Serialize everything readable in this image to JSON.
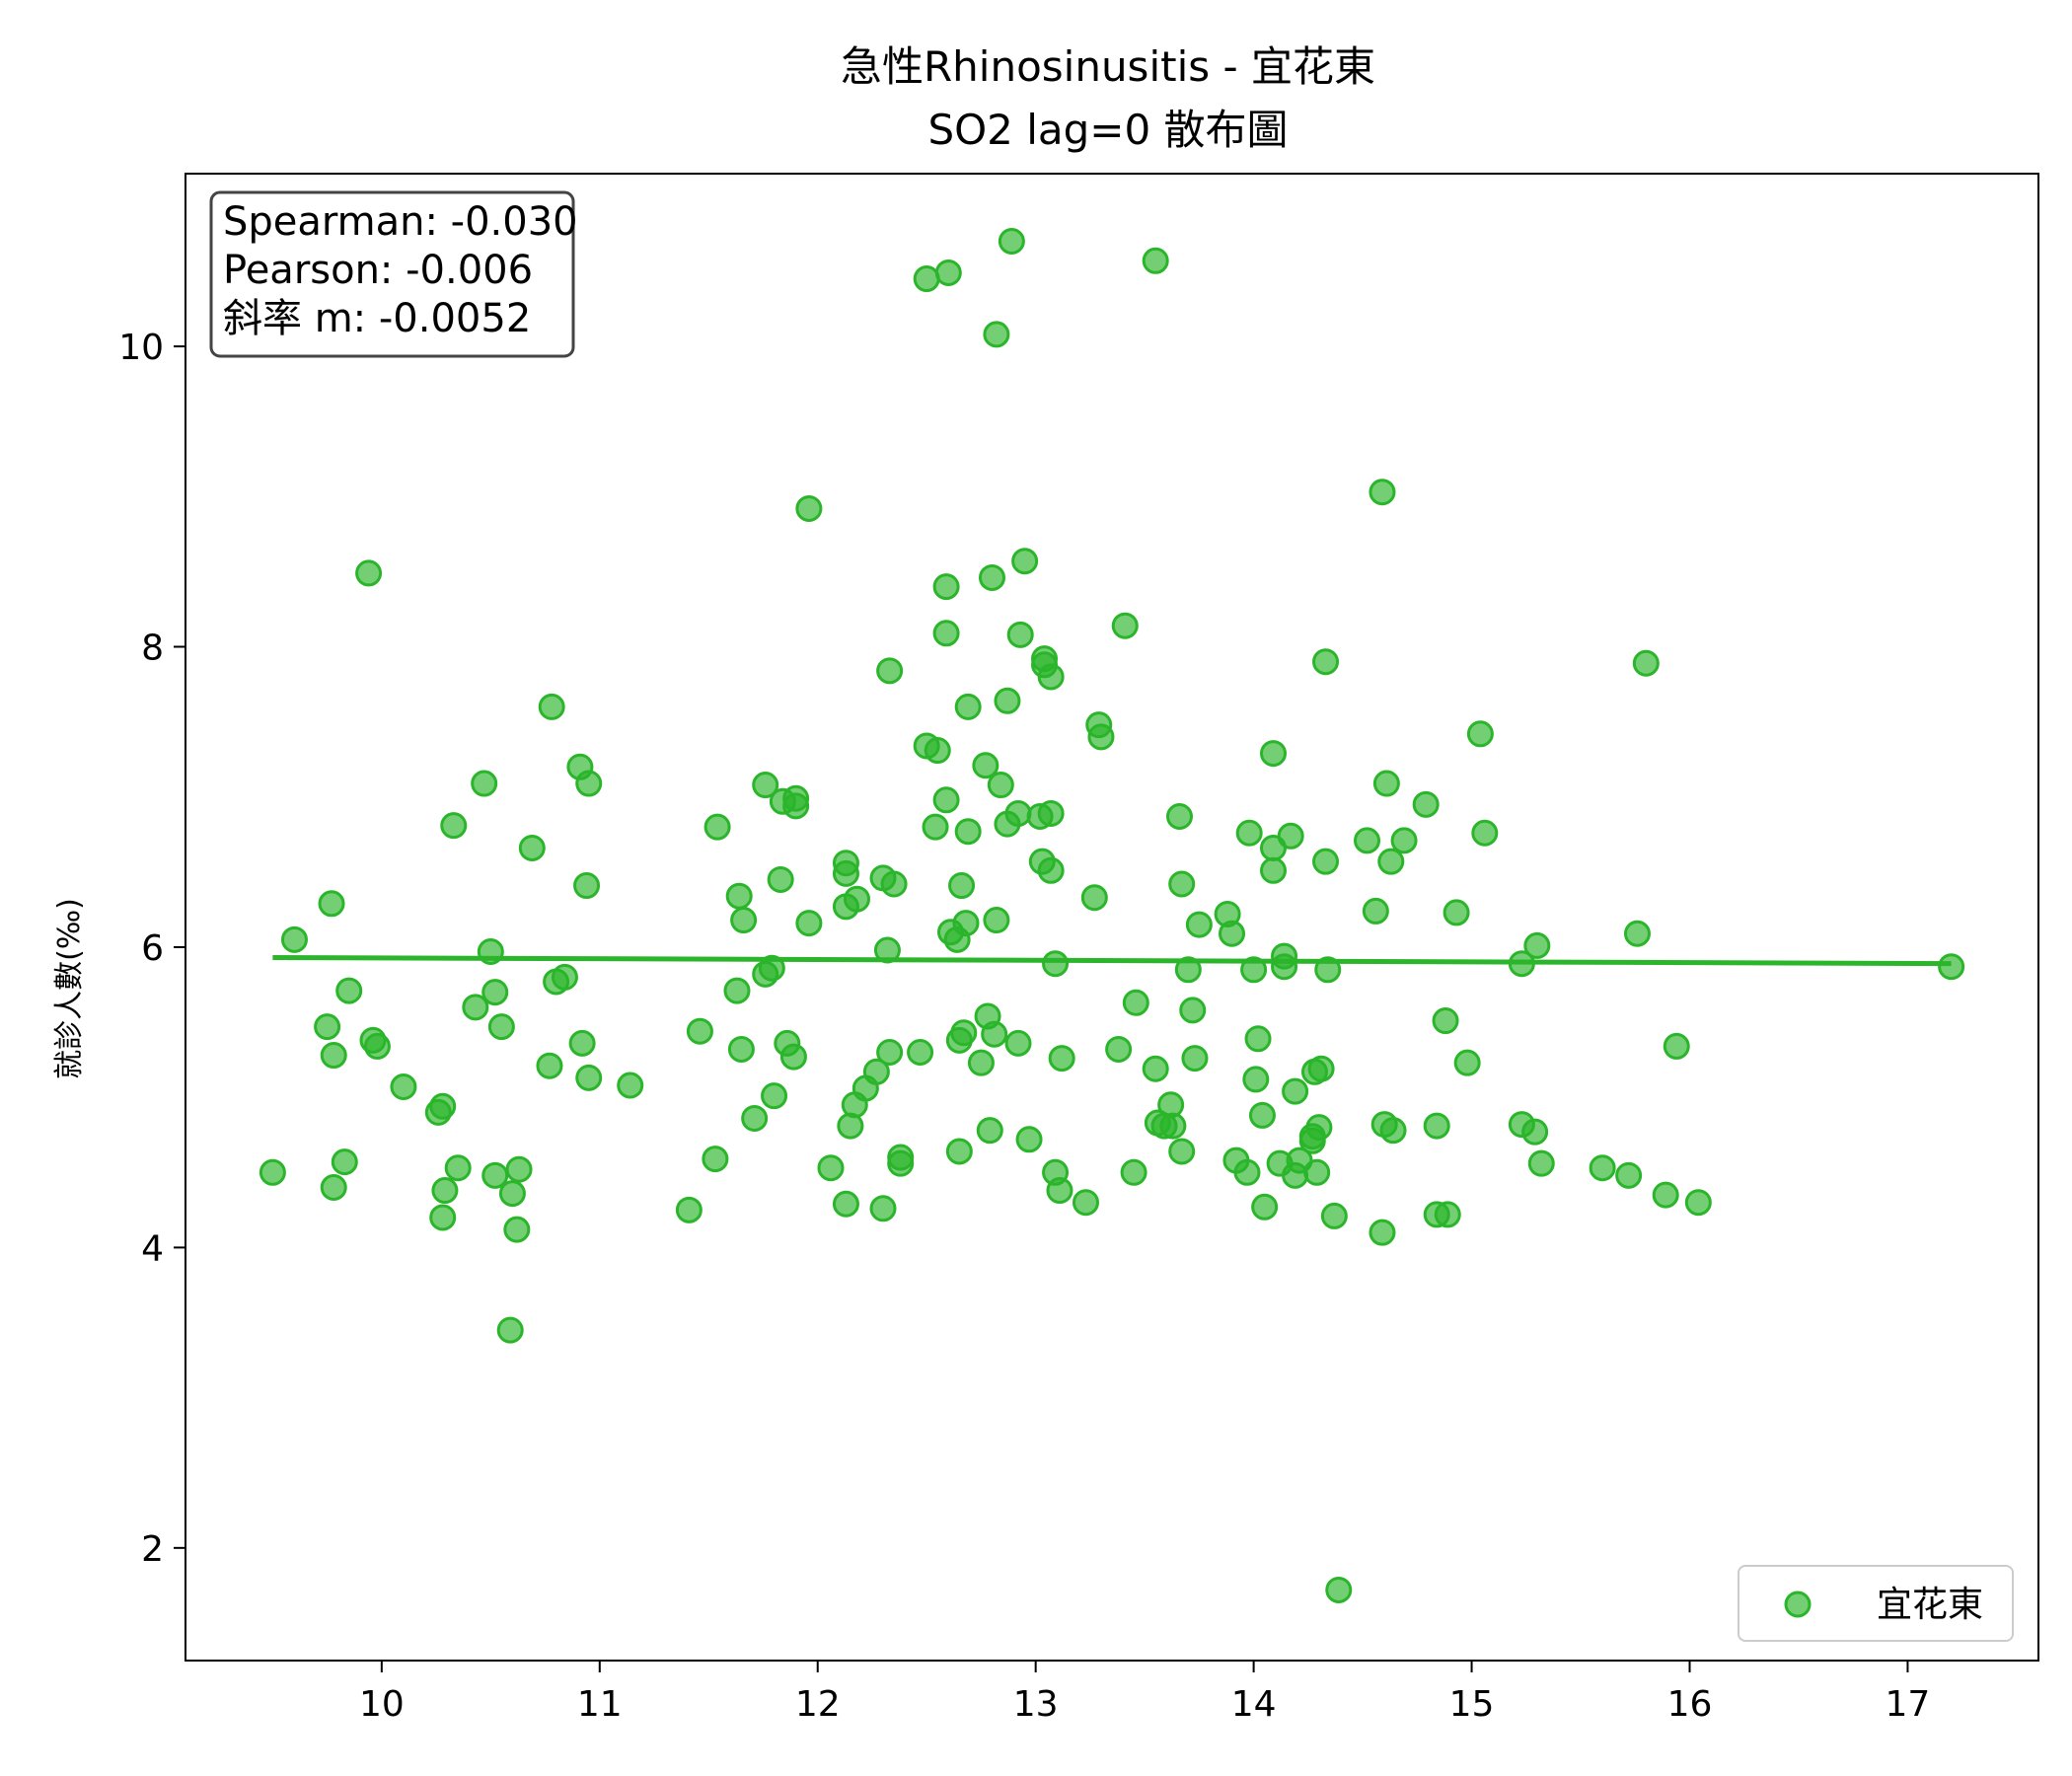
{
  "chart_data": {
    "type": "scatter",
    "title": "急性Rhinosinusitis - 宜花東",
    "subtitle": "SO2 lag=0 散布圖",
    "xlabel": "",
    "ylabel": "就診人數(‰)",
    "xlim": [
      9.1,
      17.6
    ],
    "ylim": [
      1.25,
      11.15
    ],
    "xticks": [
      10,
      11,
      12,
      13,
      14,
      15,
      16,
      17
    ],
    "yticks": [
      2,
      4,
      6,
      8,
      10
    ],
    "grid": false,
    "legend_position": "lower-right",
    "stats": [
      "Spearman: -0.030",
      "Pearson: -0.006",
      "斜率 m: -0.0052"
    ],
    "series": [
      {
        "name": "宜花東",
        "color": "#2ab52a",
        "points": [
          [
            9.5,
            4.5
          ],
          [
            9.6,
            6.05
          ],
          [
            9.75,
            5.47
          ],
          [
            9.77,
            6.29
          ],
          [
            9.78,
            4.4
          ],
          [
            9.78,
            5.28
          ],
          [
            9.83,
            4.57
          ],
          [
            9.85,
            5.71
          ],
          [
            9.94,
            8.49
          ],
          [
            9.96,
            5.38
          ],
          [
            9.98,
            5.34
          ],
          [
            10.1,
            5.07
          ],
          [
            10.26,
            4.9
          ],
          [
            10.28,
            4.94
          ],
          [
            10.28,
            4.2
          ],
          [
            10.29,
            4.38
          ],
          [
            10.33,
            6.81
          ],
          [
            10.35,
            4.53
          ],
          [
            10.43,
            5.6
          ],
          [
            10.47,
            7.09
          ],
          [
            10.5,
            5.97
          ],
          [
            10.52,
            5.7
          ],
          [
            10.52,
            4.48
          ],
          [
            10.55,
            5.47
          ],
          [
            10.59,
            3.45
          ],
          [
            10.6,
            4.36
          ],
          [
            10.62,
            4.12
          ],
          [
            10.63,
            4.52
          ],
          [
            10.69,
            6.66
          ],
          [
            10.77,
            5.21
          ],
          [
            10.78,
            7.6
          ],
          [
            10.8,
            5.77
          ],
          [
            10.84,
            5.8
          ],
          [
            10.91,
            7.2
          ],
          [
            10.92,
            5.36
          ],
          [
            10.94,
            6.41
          ],
          [
            10.95,
            5.13
          ],
          [
            10.95,
            7.09
          ],
          [
            11.14,
            5.08
          ],
          [
            11.41,
            4.25
          ],
          [
            11.46,
            5.44
          ],
          [
            11.53,
            4.59
          ],
          [
            11.54,
            6.8
          ],
          [
            11.63,
            5.71
          ],
          [
            11.64,
            6.34
          ],
          [
            11.65,
            5.32
          ],
          [
            11.66,
            6.18
          ],
          [
            11.71,
            4.86
          ],
          [
            11.76,
            5.82
          ],
          [
            11.76,
            7.08
          ],
          [
            11.79,
            5.86
          ],
          [
            11.8,
            5.01
          ],
          [
            11.83,
            6.45
          ],
          [
            11.84,
            6.97
          ],
          [
            11.86,
            5.36
          ],
          [
            11.89,
            5.27
          ],
          [
            11.9,
            6.99
          ],
          [
            11.9,
            6.94
          ],
          [
            11.96,
            6.16
          ],
          [
            11.96,
            8.92
          ],
          [
            12.06,
            4.53
          ],
          [
            12.13,
            4.29
          ],
          [
            12.13,
            6.56
          ],
          [
            12.13,
            6.49
          ],
          [
            12.13,
            6.27
          ],
          [
            12.15,
            4.81
          ],
          [
            12.17,
            4.95
          ],
          [
            12.18,
            6.32
          ],
          [
            12.22,
            5.06
          ],
          [
            12.27,
            5.17
          ],
          [
            12.3,
            4.26
          ],
          [
            12.3,
            6.46
          ],
          [
            12.32,
            5.98
          ],
          [
            12.33,
            5.3
          ],
          [
            12.33,
            7.84
          ],
          [
            12.35,
            6.42
          ],
          [
            12.38,
            4.6
          ],
          [
            12.38,
            4.56
          ],
          [
            12.47,
            5.3
          ],
          [
            12.5,
            10.45
          ],
          [
            12.5,
            7.34
          ],
          [
            12.54,
            6.8
          ],
          [
            12.55,
            7.31
          ],
          [
            12.59,
            6.98
          ],
          [
            12.59,
            8.09
          ],
          [
            12.59,
            8.4
          ],
          [
            12.6,
            10.49
          ],
          [
            12.61,
            6.1
          ],
          [
            12.64,
            6.05
          ],
          [
            12.65,
            4.64
          ],
          [
            12.65,
            5.38
          ],
          [
            12.66,
            6.41
          ],
          [
            12.67,
            5.43
          ],
          [
            12.68,
            6.16
          ],
          [
            12.69,
            6.77
          ],
          [
            12.69,
            7.6
          ],
          [
            12.75,
            5.23
          ],
          [
            12.77,
            7.21
          ],
          [
            12.78,
            5.54
          ],
          [
            12.79,
            4.78
          ],
          [
            12.8,
            8.46
          ],
          [
            12.81,
            5.42
          ],
          [
            12.82,
            10.08
          ],
          [
            12.82,
            6.18
          ],
          [
            12.84,
            7.08
          ],
          [
            12.87,
            7.64
          ],
          [
            12.87,
            6.82
          ],
          [
            12.89,
            10.7
          ],
          [
            12.92,
            5.36
          ],
          [
            12.92,
            6.89
          ],
          [
            12.93,
            8.08
          ],
          [
            12.95,
            8.57
          ],
          [
            12.97,
            4.72
          ],
          [
            13.02,
            6.87
          ],
          [
            13.03,
            6.57
          ],
          [
            13.04,
            7.92
          ],
          [
            13.04,
            7.88
          ],
          [
            13.07,
            7.8
          ],
          [
            13.07,
            6.51
          ],
          [
            13.07,
            6.89
          ],
          [
            13.09,
            5.89
          ],
          [
            13.09,
            4.5
          ],
          [
            13.11,
            4.38
          ],
          [
            13.12,
            5.26
          ],
          [
            13.23,
            4.3
          ],
          [
            13.27,
            6.33
          ],
          [
            13.29,
            7.48
          ],
          [
            13.3,
            7.4
          ],
          [
            13.38,
            5.32
          ],
          [
            13.41,
            8.14
          ],
          [
            13.45,
            4.5
          ],
          [
            13.46,
            5.63
          ],
          [
            13.55,
            10.57
          ],
          [
            13.55,
            5.19
          ],
          [
            13.56,
            4.83
          ],
          [
            13.59,
            4.81
          ],
          [
            13.62,
            4.95
          ],
          [
            13.63,
            4.81
          ],
          [
            13.66,
            6.87
          ],
          [
            13.67,
            6.42
          ],
          [
            13.67,
            4.64
          ],
          [
            13.7,
            5.85
          ],
          [
            13.72,
            5.58
          ],
          [
            13.73,
            5.26
          ],
          [
            13.75,
            6.15
          ],
          [
            13.88,
            6.22
          ],
          [
            13.9,
            6.09
          ],
          [
            13.92,
            4.58
          ],
          [
            13.97,
            4.5
          ],
          [
            13.98,
            6.76
          ],
          [
            14.0,
            5.85
          ],
          [
            14.01,
            5.12
          ],
          [
            14.02,
            5.39
          ],
          [
            14.04,
            4.88
          ],
          [
            14.05,
            4.27
          ],
          [
            14.09,
            7.29
          ],
          [
            14.09,
            6.66
          ],
          [
            14.09,
            6.51
          ],
          [
            14.12,
            4.56
          ],
          [
            14.14,
            5.94
          ],
          [
            14.14,
            5.87
          ],
          [
            14.17,
            6.74
          ],
          [
            14.19,
            5.04
          ],
          [
            14.19,
            4.48
          ],
          [
            14.21,
            4.58
          ],
          [
            14.27,
            4.71
          ],
          [
            14.27,
            4.74
          ],
          [
            14.28,
            5.17
          ],
          [
            14.29,
            4.5
          ],
          [
            14.3,
            4.8
          ],
          [
            14.31,
            5.19
          ],
          [
            14.33,
            7.9
          ],
          [
            14.33,
            6.57
          ],
          [
            14.34,
            5.85
          ],
          [
            14.37,
            4.21
          ],
          [
            14.39,
            1.72
          ],
          [
            14.52,
            6.71
          ],
          [
            14.56,
            6.24
          ],
          [
            14.59,
            9.03
          ],
          [
            14.59,
            4.1
          ],
          [
            14.6,
            4.82
          ],
          [
            14.61,
            7.09
          ],
          [
            14.63,
            6.57
          ],
          [
            14.64,
            4.78
          ],
          [
            14.69,
            6.71
          ],
          [
            14.79,
            6.95
          ],
          [
            14.84,
            4.81
          ],
          [
            14.84,
            4.22
          ],
          [
            14.88,
            5.51
          ],
          [
            14.89,
            4.22
          ],
          [
            14.93,
            6.23
          ],
          [
            14.98,
            5.23
          ],
          [
            15.04,
            7.42
          ],
          [
            15.06,
            6.76
          ],
          [
            15.23,
            5.89
          ],
          [
            15.23,
            4.82
          ],
          [
            15.29,
            4.77
          ],
          [
            15.3,
            6.01
          ],
          [
            15.32,
            4.56
          ],
          [
            15.6,
            4.53
          ],
          [
            15.72,
            4.48
          ],
          [
            15.76,
            6.09
          ],
          [
            15.8,
            7.89
          ],
          [
            15.89,
            4.35
          ],
          [
            15.94,
            5.34
          ],
          [
            16.04,
            4.3
          ],
          [
            17.2,
            5.87
          ]
        ]
      }
    ],
    "regression": {
      "x_range": [
        9.5,
        17.2
      ],
      "slope": -0.0052,
      "intercept": 5.98,
      "color": "#2ab52a"
    }
  }
}
